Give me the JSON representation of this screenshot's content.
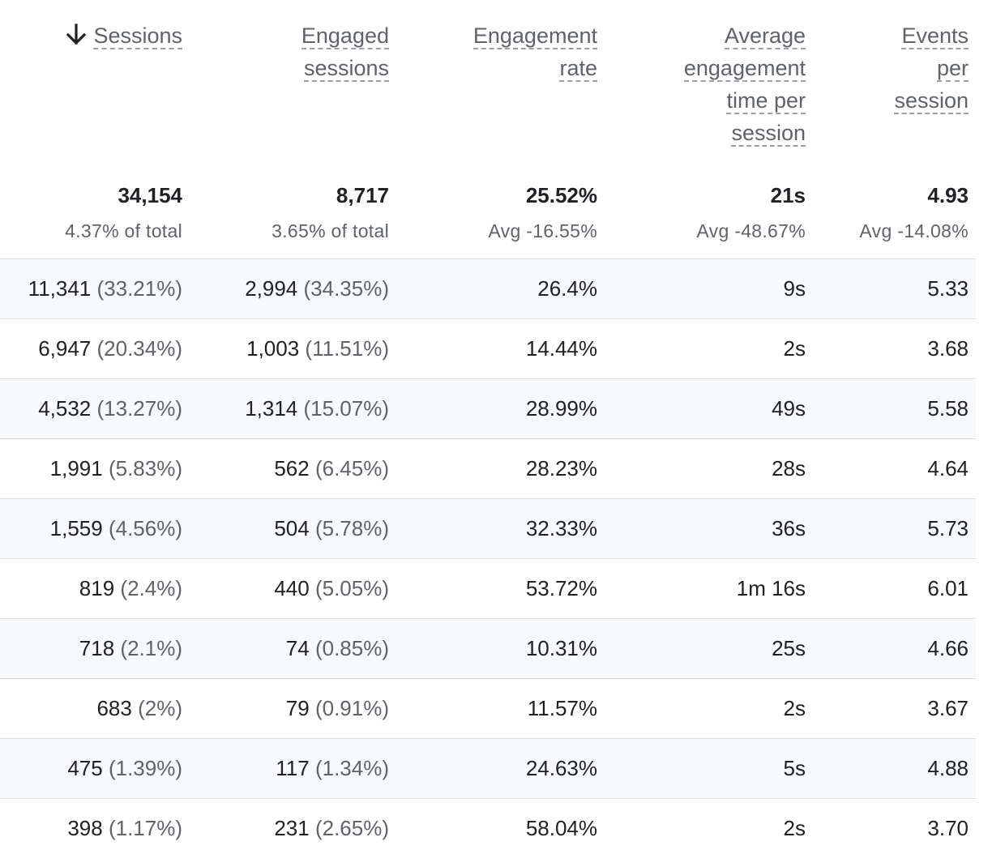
{
  "columns": [
    {
      "key": "sessions",
      "label_lines": [
        "Sessions"
      ],
      "sorted": true,
      "sort_icon": "arrow-down-icon"
    },
    {
      "key": "engaged_sessions",
      "label_lines": [
        "Engaged",
        "sessions"
      ]
    },
    {
      "key": "engagement_rate",
      "label_lines": [
        "Engagement",
        "rate"
      ]
    },
    {
      "key": "avg_engagement_time",
      "label_lines": [
        "Average",
        "engagement",
        "time per",
        "session"
      ]
    },
    {
      "key": "events_per_session",
      "label_lines": [
        "Events",
        "per",
        "session"
      ]
    }
  ],
  "totals": [
    {
      "value": "34,154",
      "sub": "4.37% of total"
    },
    {
      "value": "8,717",
      "sub": "3.65% of total"
    },
    {
      "value": "25.52%",
      "sub": "Avg -16.55%"
    },
    {
      "value": "21s",
      "sub": "Avg -48.67%"
    },
    {
      "value": "4.93",
      "sub": "Avg -14.08%"
    }
  ],
  "rows": [
    {
      "sessions": "11,341",
      "sessions_pct": "(33.21%)",
      "engaged": "2,994",
      "engaged_pct": "(34.35%)",
      "rate": "26.4%",
      "time": "9s",
      "events": "5.33"
    },
    {
      "sessions": "6,947",
      "sessions_pct": "(20.34%)",
      "engaged": "1,003",
      "engaged_pct": "(11.51%)",
      "rate": "14.44%",
      "time": "2s",
      "events": "3.68"
    },
    {
      "sessions": "4,532",
      "sessions_pct": "(13.27%)",
      "engaged": "1,314",
      "engaged_pct": "(15.07%)",
      "rate": "28.99%",
      "time": "49s",
      "events": "5.58"
    },
    {
      "sessions": "1,991",
      "sessions_pct": "(5.83%)",
      "engaged": "562",
      "engaged_pct": "(6.45%)",
      "rate": "28.23%",
      "time": "28s",
      "events": "4.64"
    },
    {
      "sessions": "1,559",
      "sessions_pct": "(4.56%)",
      "engaged": "504",
      "engaged_pct": "(5.78%)",
      "rate": "32.33%",
      "time": "36s",
      "events": "5.73"
    },
    {
      "sessions": "819",
      "sessions_pct": "(2.4%)",
      "engaged": "440",
      "engaged_pct": "(5.05%)",
      "rate": "53.72%",
      "time": "1m 16s",
      "events": "6.01"
    },
    {
      "sessions": "718",
      "sessions_pct": "(2.1%)",
      "engaged": "74",
      "engaged_pct": "(0.85%)",
      "rate": "10.31%",
      "time": "25s",
      "events": "4.66"
    },
    {
      "sessions": "683",
      "sessions_pct": "(2%)",
      "engaged": "79",
      "engaged_pct": "(0.91%)",
      "rate": "11.57%",
      "time": "2s",
      "events": "3.67"
    },
    {
      "sessions": "475",
      "sessions_pct": "(1.39%)",
      "engaged": "117",
      "engaged_pct": "(1.34%)",
      "rate": "24.63%",
      "time": "5s",
      "events": "4.88"
    },
    {
      "sessions": "398",
      "sessions_pct": "(1.17%)",
      "engaged": "231",
      "engaged_pct": "(2.65%)",
      "rate": "58.04%",
      "time": "2s",
      "events": "3.70"
    }
  ],
  "colors": {
    "text": "#202124",
    "muted": "#5f6368",
    "divider": "#dadce0",
    "row_shade": "#f8f9fa"
  }
}
